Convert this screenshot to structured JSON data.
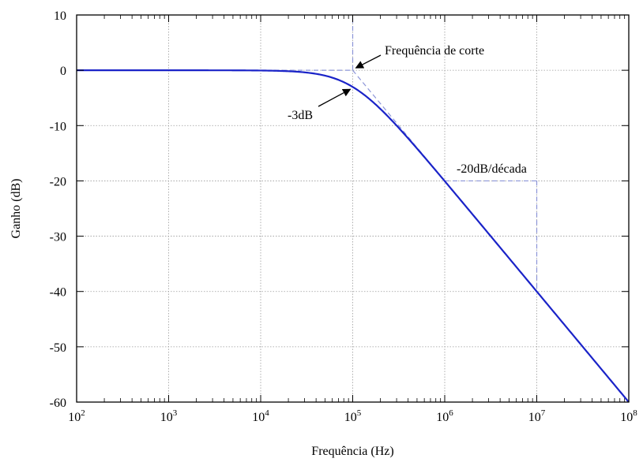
{
  "chart_data": {
    "type": "line",
    "title": "",
    "xlabel": "Frequência (Hz)",
    "ylabel": "Ganho (dB)",
    "xscale": "log",
    "xlim": [
      100,
      100000000
    ],
    "ylim": [
      -60,
      10
    ],
    "grid": true,
    "x_ticks": [
      {
        "value": 100,
        "base": "10",
        "exp": "2"
      },
      {
        "value": 1000,
        "base": "10",
        "exp": "3"
      },
      {
        "value": 10000,
        "base": "10",
        "exp": "4"
      },
      {
        "value": 100000,
        "base": "10",
        "exp": "5"
      },
      {
        "value": 1000000,
        "base": "10",
        "exp": "6"
      },
      {
        "value": 10000000,
        "base": "10",
        "exp": "7"
      },
      {
        "value": 100000000,
        "base": "10",
        "exp": "8"
      }
    ],
    "y_ticks": [
      {
        "value": 10,
        "label": "10"
      },
      {
        "value": 0,
        "label": "0"
      },
      {
        "value": -10,
        "label": "-10"
      },
      {
        "value": -20,
        "label": "-20"
      },
      {
        "value": -30,
        "label": "-30"
      },
      {
        "value": -40,
        "label": "-40"
      },
      {
        "value": -50,
        "label": "-50"
      },
      {
        "value": -60,
        "label": "-60"
      }
    ],
    "series": [
      {
        "color": "#1a23c8",
        "cutoff_hz": 100000,
        "x": [
          100,
          1000,
          10000,
          30000,
          50000,
          70000,
          100000,
          200000,
          300000,
          500000,
          1000000,
          10000000,
          100000000
        ],
        "y": [
          0,
          0,
          -0.04,
          -0.37,
          -0.97,
          -1.74,
          -3.01,
          -6.99,
          -10.0,
          -14.15,
          -20.04,
          -40.0,
          -60.0
        ]
      }
    ],
    "asymptotes": [
      {
        "x": [
          100,
          100000
        ],
        "y": [
          0,
          0
        ]
      },
      {
        "x": [
          100000,
          1000000
        ],
        "y": [
          0,
          -20
        ]
      }
    ],
    "reference_lines": [
      {
        "x": [
          100000,
          100000
        ],
        "y": [
          0,
          10
        ]
      },
      {
        "x": [
          1000000,
          10000000
        ],
        "y": [
          -20,
          -20
        ]
      },
      {
        "x": [
          10000000,
          10000000
        ],
        "y": [
          -20,
          -40
        ]
      }
    ],
    "annotations": [
      {
        "name": "annotation-cutoff",
        "text": "Frequência de corte",
        "point_x": 100000,
        "point_y": 0
      },
      {
        "name": "annotation-3db",
        "text": "-3dB",
        "point_x": 100000,
        "point_y": -3
      },
      {
        "name": "annotation-slope",
        "text": "-20dB/década",
        "point_x": 1000000,
        "point_y": -20
      }
    ]
  }
}
